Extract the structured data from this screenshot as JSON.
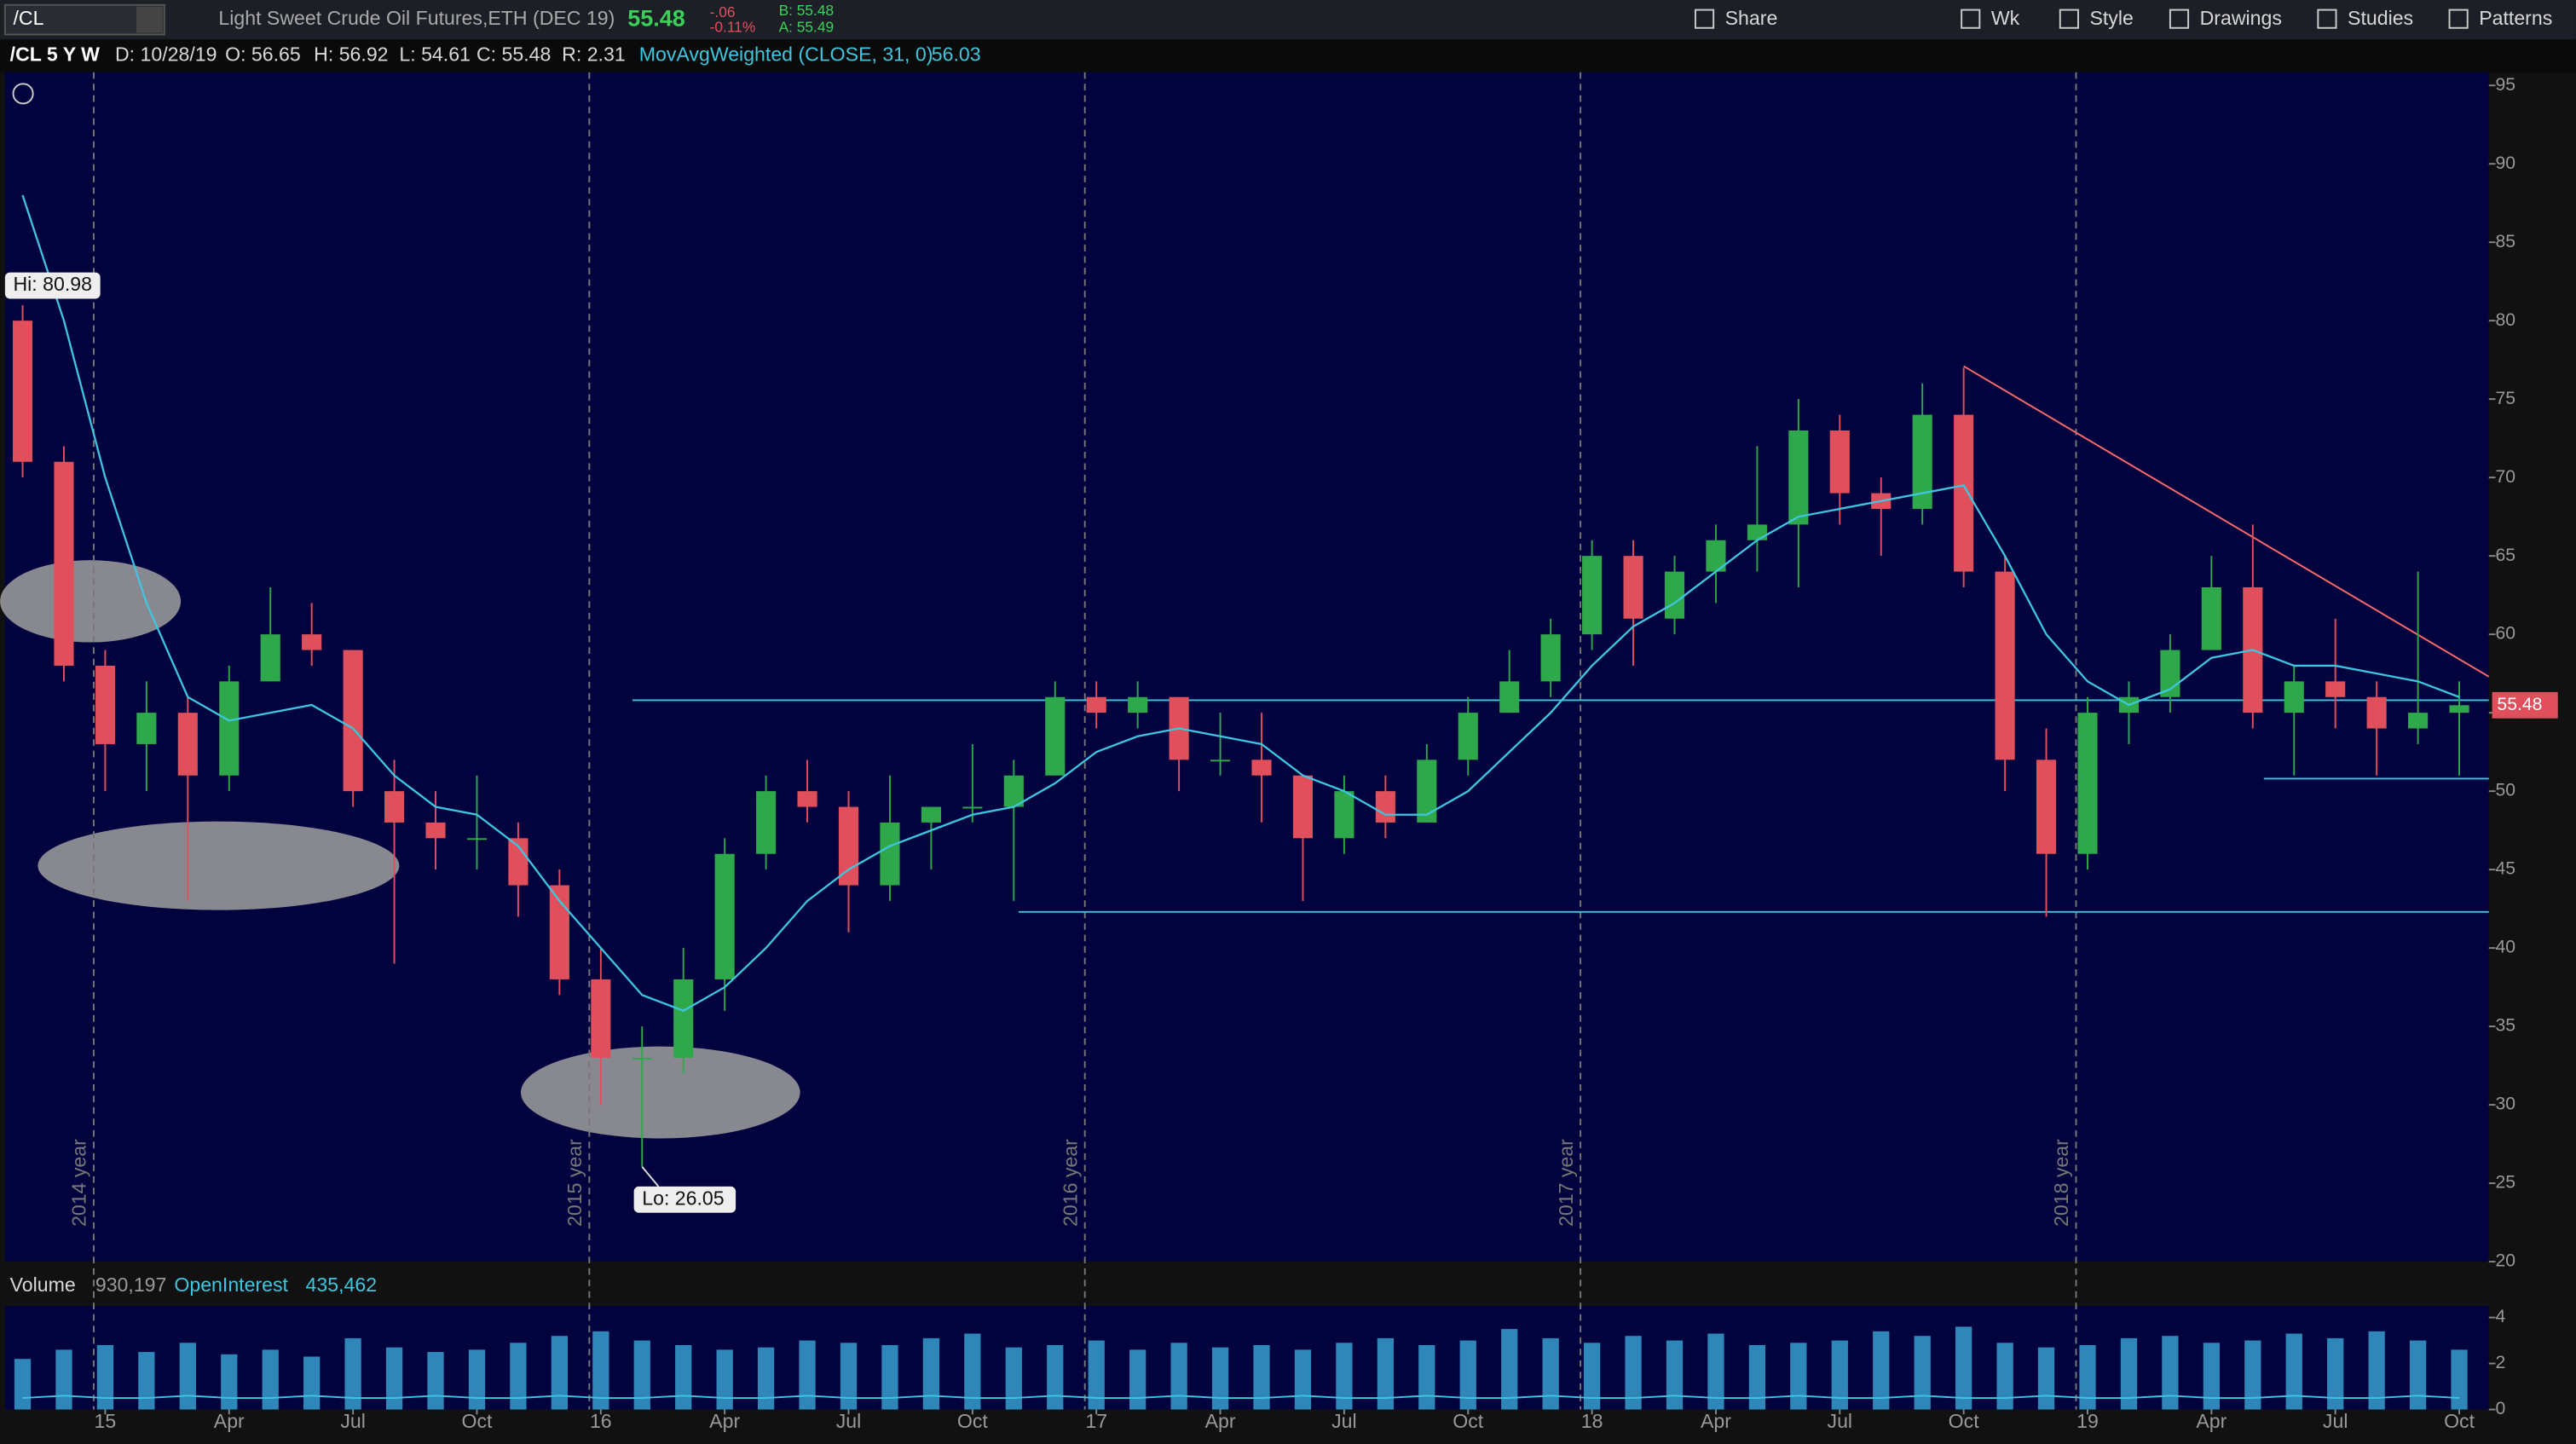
{
  "toolbar": {
    "symbol": "/CL",
    "description": "Light Sweet Crude Oil Futures,ETH (DEC 19)",
    "last": "55.48",
    "change": "-.06",
    "change_pct": "-0.11%",
    "bid": "B: 55.48",
    "ask": "A: 55.49",
    "buttons": [
      "Share",
      "Wk",
      "Style",
      "Drawings",
      "Studies",
      "Patterns"
    ]
  },
  "header": {
    "chart_id": "/CL 5 Y W",
    "date": "D: 10/28/19",
    "open": "O: 56.65",
    "high": "H: 56.92",
    "low": "L: 54.61",
    "close": "C: 55.48",
    "range": "R: 2.31",
    "study": "MovAvgWeighted (CLOSE, 31, 0)",
    "study_value": "56.03"
  },
  "chart_data": {
    "type": "candlestick",
    "x": [
      "2014-11",
      "2014-12",
      "2015-01",
      "2015-02",
      "2015-03",
      "2015-04",
      "2015-05",
      "2015-06",
      "2015-07",
      "2015-08",
      "2015-09",
      "2015-10",
      "2015-11",
      "2015-12",
      "2016-01",
      "2016-02",
      "2016-03",
      "2016-04",
      "2016-05",
      "2016-06",
      "2016-07",
      "2016-08",
      "2016-09",
      "2016-10",
      "2016-11",
      "2016-12",
      "2017-01",
      "2017-02",
      "2017-03",
      "2017-04",
      "2017-05",
      "2017-06",
      "2017-07",
      "2017-08",
      "2017-09",
      "2017-10",
      "2017-11",
      "2017-12",
      "2018-01",
      "2018-02",
      "2018-03",
      "2018-04",
      "2018-05",
      "2018-06",
      "2018-07",
      "2018-08",
      "2018-09",
      "2018-10",
      "2018-11",
      "2018-12",
      "2019-01",
      "2019-02",
      "2019-03",
      "2019-04",
      "2019-05",
      "2019-06",
      "2019-07",
      "2019-08",
      "2019-09",
      "2019-10"
    ],
    "open": [
      80,
      71,
      58,
      53,
      55,
      51,
      57,
      60,
      59,
      50,
      48,
      47,
      47,
      44,
      38,
      33,
      33,
      38,
      46,
      50,
      49,
      44,
      48,
      49,
      49,
      51,
      56,
      55,
      56,
      52,
      52,
      51,
      47,
      50,
      48,
      52,
      55,
      57,
      60,
      65,
      61,
      64,
      66,
      67,
      73,
      69,
      68,
      74,
      64,
      52,
      46,
      55,
      56,
      59,
      63,
      55,
      57,
      56,
      54,
      55
    ],
    "high": [
      80.98,
      72,
      59,
      57,
      56,
      58,
      63,
      62,
      59,
      52,
      50,
      51,
      48,
      45,
      40,
      35,
      40,
      47,
      51,
      52,
      50,
      51,
      49,
      53,
      52,
      57,
      57,
      57,
      56,
      55,
      55,
      51,
      51,
      51,
      53,
      56,
      59,
      61,
      66,
      66,
      65,
      67,
      72,
      75,
      74,
      70,
      76,
      77,
      65,
      54,
      56,
      57,
      60,
      65,
      67,
      58,
      61,
      57,
      64,
      57
    ],
    "low": [
      70,
      57,
      50,
      50,
      43,
      50,
      57,
      58,
      49,
      39,
      45,
      45,
      42,
      37,
      30,
      26.05,
      32,
      36,
      45,
      48,
      41,
      43,
      45,
      48,
      43,
      51,
      54,
      54,
      50,
      51,
      48,
      43,
      46,
      47,
      48,
      51,
      55,
      56,
      59,
      58,
      60,
      62,
      64,
      63,
      67,
      65,
      67,
      63,
      50,
      42,
      45,
      53,
      55,
      59,
      54,
      51,
      54,
      51,
      53,
      51
    ],
    "close": [
      71,
      58,
      53,
      55,
      51,
      57,
      60,
      59,
      50,
      48,
      47,
      47,
      44,
      38,
      33,
      33,
      38,
      46,
      50,
      49,
      44,
      48,
      49,
      49,
      51,
      56,
      55,
      56,
      52,
      52,
      51,
      47,
      50,
      48,
      52,
      55,
      57,
      60,
      65,
      61,
      64,
      66,
      67,
      73,
      69,
      68,
      74,
      64,
      52,
      46,
      55,
      56,
      59,
      63,
      55,
      57,
      56,
      54,
      55,
      55.48
    ],
    "ma": [
      88,
      80,
      70,
      62,
      56,
      54.5,
      55,
      55.5,
      54,
      51,
      49,
      48.5,
      46.5,
      43,
      40,
      37,
      36,
      37.5,
      40,
      43,
      45,
      46.5,
      47.5,
      48.5,
      49,
      50.5,
      52.5,
      53.5,
      54,
      53.5,
      53,
      51,
      50,
      48.5,
      48.5,
      50,
      52.5,
      55,
      58,
      60.5,
      62,
      64,
      66,
      67.5,
      68,
      68.5,
      69,
      69.5,
      65,
      60,
      57,
      55.5,
      56.5,
      58.5,
      59,
      58,
      58,
      57.5,
      57,
      56
    ],
    "up_color": "#2ea84a",
    "down_color": "#e0505c",
    "ma_color": "#3ec6e0",
    "ylim": [
      20,
      95
    ],
    "yticks": [
      20,
      25,
      30,
      35,
      40,
      45,
      50,
      55,
      60,
      65,
      70,
      75,
      80,
      85,
      90,
      95
    ],
    "xticks": [
      {
        "value": "2015-01",
        "label": "15"
      },
      {
        "value": "2015-04",
        "label": "Apr"
      },
      {
        "value": "2015-07",
        "label": "Jul"
      },
      {
        "value": "2015-10",
        "label": "Oct"
      },
      {
        "value": "2016-01",
        "label": "16"
      },
      {
        "value": "2016-04",
        "label": "Apr"
      },
      {
        "value": "2016-07",
        "label": "Jul"
      },
      {
        "value": "2016-10",
        "label": "Oct"
      },
      {
        "value": "2017-01",
        "label": "17"
      },
      {
        "value": "2017-04",
        "label": "Apr"
      },
      {
        "value": "2017-07",
        "label": "Jul"
      },
      {
        "value": "2017-10",
        "label": "Oct"
      },
      {
        "value": "2018-01",
        "label": "18"
      },
      {
        "value": "2018-04",
        "label": "Apr"
      },
      {
        "value": "2018-07",
        "label": "Jul"
      },
      {
        "value": "2018-10",
        "label": "Oct"
      },
      {
        "value": "2019-01",
        "label": "19"
      },
      {
        "value": "2019-04",
        "label": "Apr"
      },
      {
        "value": "2019-07",
        "label": "Jul"
      },
      {
        "value": "2019-10",
        "label": "Oct"
      }
    ],
    "year_markers": [
      {
        "value": "2015-01",
        "label": "2014 year"
      },
      {
        "value": "2016-01",
        "label": "2015 year"
      },
      {
        "value": "2017-01",
        "label": "2016 year"
      },
      {
        "value": "2018-01",
        "label": "2017 year"
      },
      {
        "value": "2019-01",
        "label": "2018 year"
      }
    ],
    "hi_label": "Hi: 80.98",
    "lo_label": "Lo: 26.05",
    "hlines": [
      55.8,
      42.3,
      50.8
    ],
    "hline_color": "#3ec6e0",
    "trendline": {
      "x": [
        "2018-10",
        "2019-10"
      ],
      "values": [
        77.1,
        57.3
      ],
      "color": "#ff6b6b"
    },
    "volume": {
      "title": "Volume",
      "value": "930,197",
      "oi_title": "OpenInterest",
      "oi_value": "435,462",
      "color": "#2f86b8",
      "values": [
        2.2,
        2.6,
        2.8,
        2.5,
        2.9,
        2.4,
        2.6,
        2.3,
        3.1,
        2.7,
        2.5,
        2.6,
        2.9,
        3.2,
        3.4,
        3.0,
        2.8,
        2.6,
        2.7,
        3.0,
        2.9,
        2.8,
        3.1,
        3.3,
        2.7,
        2.8,
        3.0,
        2.6,
        2.9,
        2.7,
        2.8,
        2.6,
        2.9,
        3.1,
        2.8,
        3.0,
        3.5,
        3.1,
        2.9,
        3.2,
        3.0,
        3.3,
        2.8,
        2.9,
        3.0,
        3.4,
        3.2,
        3.6,
        2.9,
        2.7,
        2.8,
        3.1,
        3.2,
        2.9,
        3.0,
        3.3,
        3.1,
        3.4,
        3.0,
        2.6
      ],
      "oi": [
        0.5,
        0.6,
        0.5,
        0.5,
        0.6,
        0.5,
        0.5,
        0.6,
        0.5,
        0.5,
        0.6,
        0.5,
        0.5,
        0.6,
        0.5,
        0.5,
        0.6,
        0.5,
        0.5,
        0.6,
        0.5,
        0.5,
        0.6,
        0.5,
        0.5,
        0.6,
        0.5,
        0.5,
        0.6,
        0.5,
        0.5,
        0.6,
        0.5,
        0.5,
        0.6,
        0.5,
        0.5,
        0.6,
        0.5,
        0.5,
        0.6,
        0.5,
        0.5,
        0.6,
        0.5,
        0.5,
        0.6,
        0.5,
        0.5,
        0.6,
        0.5,
        0.5,
        0.6,
        0.5,
        0.5,
        0.6,
        0.5,
        0.5,
        0.6,
        0.5
      ],
      "ylim": [
        0,
        4.5
      ],
      "yticks": [
        0,
        2,
        4
      ]
    }
  }
}
